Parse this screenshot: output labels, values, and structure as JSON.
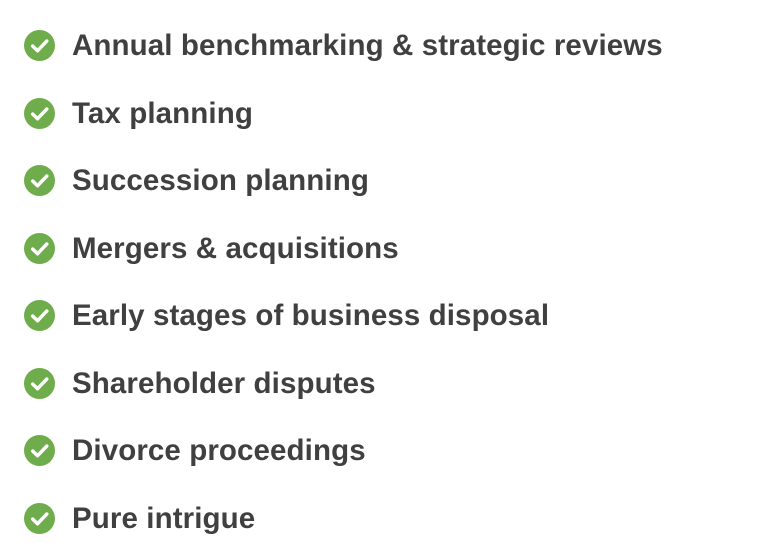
{
  "colors": {
    "check_green": "#6fac4c",
    "text": "#404040",
    "background": "#ffffff"
  },
  "checklist": {
    "icon": "check-circle-icon",
    "items": [
      {
        "label": "Annual benchmarking & strategic reviews"
      },
      {
        "label": "Tax planning"
      },
      {
        "label": "Succession planning"
      },
      {
        "label": "Mergers & acquisitions"
      },
      {
        "label": "Early stages of business disposal"
      },
      {
        "label": "Shareholder disputes"
      },
      {
        "label": "Divorce proceedings"
      },
      {
        "label": "Pure intrigue"
      }
    ]
  }
}
